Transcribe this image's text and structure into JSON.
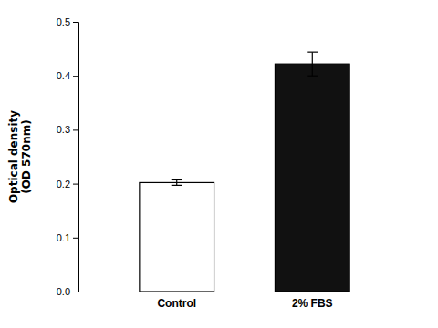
{
  "chart_data": {
    "type": "bar",
    "categories": [
      "Control",
      "2% FBS"
    ],
    "values": [
      0.202,
      0.422
    ],
    "errors": [
      0.005,
      0.022
    ],
    "colors": [
      "#ffffff",
      "#111111"
    ],
    "y_label": "Optical density\n(OD 570nm)",
    "ylim": [
      0,
      0.5
    ],
    "yticks": [
      {
        "value": 0,
        "label": "0.0"
      },
      0.1,
      0.2,
      0.3,
      0.4,
      0.5
    ],
    "grid": false
  }
}
